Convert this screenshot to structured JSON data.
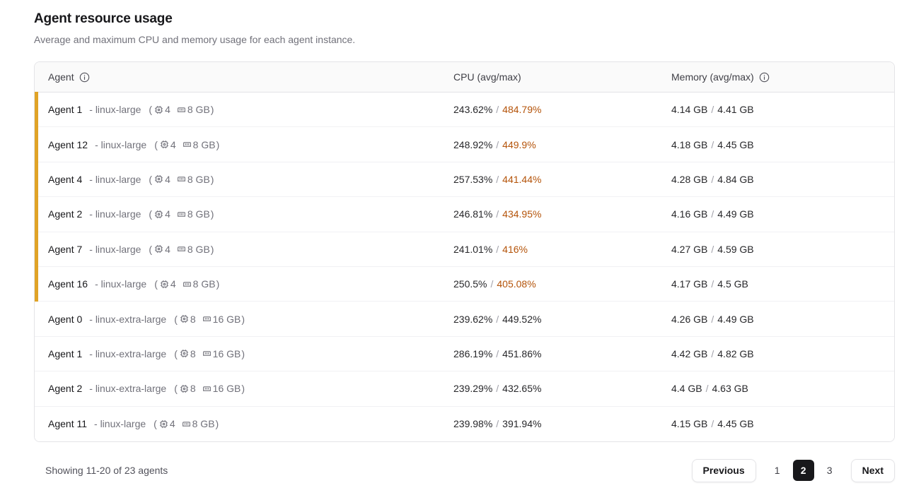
{
  "page": {
    "title": "Agent resource usage",
    "subtitle": "Average and maximum CPU and memory usage for each agent instance."
  },
  "table": {
    "columns": {
      "agent": "Agent",
      "cpu": "CPU (avg/max)",
      "memory": "Memory (avg/max)"
    },
    "value_separator": "/",
    "specs_open": "(",
    "specs_close": ")",
    "rows": [
      {
        "name": "Agent 1",
        "type_label": "- linux-large",
        "cpus": "4",
        "mem": "8 GB",
        "cpu_avg": "243.62%",
        "cpu_max": "484.79%",
        "mem_avg": "4.14 GB",
        "mem_max": "4.41 GB",
        "flagged": true
      },
      {
        "name": "Agent 12",
        "type_label": "- linux-large",
        "cpus": "4",
        "mem": "8 GB",
        "cpu_avg": "248.92%",
        "cpu_max": "449.9%",
        "mem_avg": "4.18 GB",
        "mem_max": "4.45 GB",
        "flagged": true
      },
      {
        "name": "Agent 4",
        "type_label": "- linux-large",
        "cpus": "4",
        "mem": "8 GB",
        "cpu_avg": "257.53%",
        "cpu_max": "441.44%",
        "mem_avg": "4.28 GB",
        "mem_max": "4.84 GB",
        "flagged": true
      },
      {
        "name": "Agent 2",
        "type_label": "- linux-large",
        "cpus": "4",
        "mem": "8 GB",
        "cpu_avg": "246.81%",
        "cpu_max": "434.95%",
        "mem_avg": "4.16 GB",
        "mem_max": "4.49 GB",
        "flagged": true
      },
      {
        "name": "Agent 7",
        "type_label": "- linux-large",
        "cpus": "4",
        "mem": "8 GB",
        "cpu_avg": "241.01%",
        "cpu_max": "416%",
        "mem_avg": "4.27 GB",
        "mem_max": "4.59 GB",
        "flagged": true
      },
      {
        "name": "Agent 16",
        "type_label": "- linux-large",
        "cpus": "4",
        "mem": "8 GB",
        "cpu_avg": "250.5%",
        "cpu_max": "405.08%",
        "mem_avg": "4.17 GB",
        "mem_max": "4.5 GB",
        "flagged": true
      },
      {
        "name": "Agent 0",
        "type_label": "- linux-extra-large",
        "cpus": "8",
        "mem": "16 GB",
        "cpu_avg": "239.62%",
        "cpu_max": "449.52%",
        "mem_avg": "4.26 GB",
        "mem_max": "4.49 GB",
        "flagged": false
      },
      {
        "name": "Agent 1",
        "type_label": "- linux-extra-large",
        "cpus": "8",
        "mem": "16 GB",
        "cpu_avg": "286.19%",
        "cpu_max": "451.86%",
        "mem_avg": "4.42 GB",
        "mem_max": "4.82 GB",
        "flagged": false
      },
      {
        "name": "Agent 2",
        "type_label": "- linux-extra-large",
        "cpus": "8",
        "mem": "16 GB",
        "cpu_avg": "239.29%",
        "cpu_max": "432.65%",
        "mem_avg": "4.4 GB",
        "mem_max": "4.63 GB",
        "flagged": false
      },
      {
        "name": "Agent 11",
        "type_label": "- linux-large",
        "cpus": "4",
        "mem": "8 GB",
        "cpu_avg": "239.98%",
        "cpu_max": "391.94%",
        "mem_avg": "4.15 GB",
        "mem_max": "4.45 GB",
        "flagged": false
      }
    ]
  },
  "footer": {
    "summary": "Showing 11-20 of 23 agents",
    "prev_label": "Previous",
    "next_label": "Next",
    "pages": [
      "1",
      "2",
      "3"
    ],
    "active_page": "2"
  },
  "colors": {
    "flag_stripe": "#e0a326",
    "cpu_max_warning": "#b45309",
    "active_page_bg": "#18181b",
    "table_border": "#e4e4e7",
    "header_bg": "#fafafa",
    "muted_text": "#71717a"
  }
}
